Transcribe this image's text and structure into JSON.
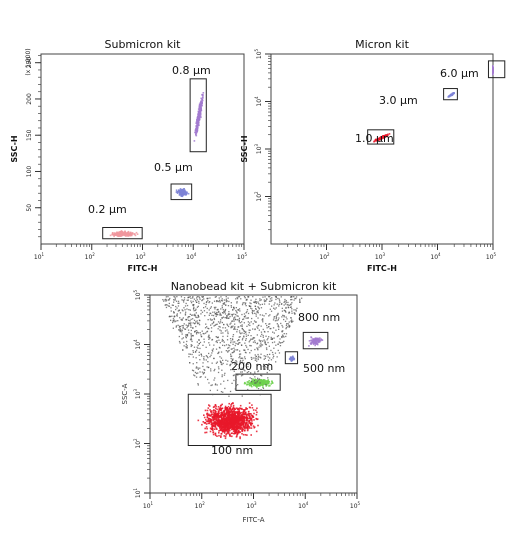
{
  "colors": {
    "pink": "#f0979e",
    "purple": "#a27ad0",
    "blue": "#7e84d6",
    "green": "#6fd14d",
    "red": "#e8182a",
    "gray": "#555555"
  },
  "chart_data": [
    {
      "type": "scatter",
      "title": "Submicron kit",
      "xlabel": "FITC-H",
      "ylabel": "SSC-H",
      "ylabel_unit": "(x 1,000)",
      "xscale": "log",
      "xlim": [
        10,
        100000
      ],
      "xticks": [
        {
          "v": 10,
          "t": "10"
        },
        {
          "v": 100,
          "t": "10"
        },
        {
          "v": 1000,
          "t": "10"
        },
        {
          "v": 10000,
          "t": "10"
        },
        {
          "v": 100000,
          "t": "10"
        }
      ],
      "xtick_exponents": [
        "1",
        "2",
        "3",
        "4",
        "5"
      ],
      "ylim": [
        0,
        262
      ],
      "yticks": [
        50,
        100,
        150,
        200,
        250
      ],
      "populations": [
        {
          "label": "0.2 μm",
          "color": "pink",
          "x_range": [
            180,
            900
          ],
          "y_range": [
            10,
            20
          ]
        },
        {
          "label": "0.5 μm",
          "color": "blue",
          "x_range": [
            4000,
            8500
          ],
          "y_range": [
            64,
            80
          ]
        },
        {
          "label": "0.8 μm",
          "color": "purple",
          "x_range": [
            9500,
            16500
          ],
          "y_range": [
            130,
            225
          ]
        }
      ]
    },
    {
      "type": "scatter",
      "title": "Micron kit",
      "xlabel": "FITC-H",
      "ylabel": "SSC-H",
      "xscale": "log",
      "yscale": "log",
      "xlim": [
        10,
        100000
      ],
      "ylim": [
        10,
        100000
      ],
      "xticks": [
        {
          "v": 100,
          "t": "10"
        },
        {
          "v": 1000,
          "t": "10"
        },
        {
          "v": 10000,
          "t": "10"
        },
        {
          "v": 100000,
          "t": "10"
        }
      ],
      "xtick_exponents": [
        "2",
        "3",
        "4",
        "5"
      ],
      "yticks": [
        {
          "v": 100,
          "t": "10"
        },
        {
          "v": 1000,
          "t": "10"
        },
        {
          "v": 10000,
          "t": "10"
        },
        {
          "v": 100000,
          "t": "10"
        }
      ],
      "ytick_exponents": [
        "2",
        "3",
        "4",
        "5"
      ],
      "populations": [
        {
          "label": "1.0 μm",
          "color": "red",
          "x_range": [
            600,
            1500
          ],
          "y_range": [
            1400,
            2300
          ]
        },
        {
          "label": "3.0 μm",
          "color": "blue",
          "x_range": [
            14000,
            21000
          ],
          "y_range": [
            12000,
            17000
          ]
        },
        {
          "label": "6.0 μm",
          "color": "purple",
          "x_range": [
            90000,
            150000
          ],
          "y_range": [
            35000,
            65000
          ]
        }
      ]
    },
    {
      "type": "scatter",
      "title": "Nanobead kit + Submicron kit",
      "xlabel": "FITC-A",
      "ylabel": "SSC-A",
      "xscale": "log",
      "yscale": "log",
      "xlim": [
        10,
        100000
      ],
      "ylim": [
        10,
        100000
      ],
      "xticks": [
        {
          "v": 10,
          "t": "10"
        },
        {
          "v": 100,
          "t": "10"
        },
        {
          "v": 1000,
          "t": "10"
        },
        {
          "v": 10000,
          "t": "10"
        },
        {
          "v": 100000,
          "t": "10"
        }
      ],
      "xtick_exponents": [
        "1",
        "2",
        "3",
        "4",
        "5"
      ],
      "yticks": [
        {
          "v": 10,
          "t": "10"
        },
        {
          "v": 100,
          "t": "10"
        },
        {
          "v": 1000,
          "t": "10"
        },
        {
          "v": 10000,
          "t": "10"
        },
        {
          "v": 100000,
          "t": "10"
        }
      ],
      "ytick_exponents": [
        "1",
        "2",
        "3",
        "4",
        "5"
      ],
      "populations": [
        {
          "label": "100 nm",
          "color": "red",
          "x_range": [
            60,
            2000
          ],
          "y_range": [
            100,
            900
          ]
        },
        {
          "label": "200 nm",
          "color": "green",
          "x_range": [
            500,
            3000
          ],
          "y_range": [
            1300,
            2300
          ]
        },
        {
          "label": "500 nm",
          "color": "blue",
          "x_range": [
            4500,
            6500
          ],
          "y_range": [
            4500,
            6500
          ]
        },
        {
          "label": "800 nm",
          "color": "purple",
          "x_range": [
            10000,
            25000
          ],
          "y_range": [
            9000,
            16000
          ]
        },
        {
          "label": "",
          "color": "gray",
          "x_range": [
            15,
            9000
          ],
          "y_range": [
            800,
            100000
          ]
        }
      ]
    }
  ]
}
